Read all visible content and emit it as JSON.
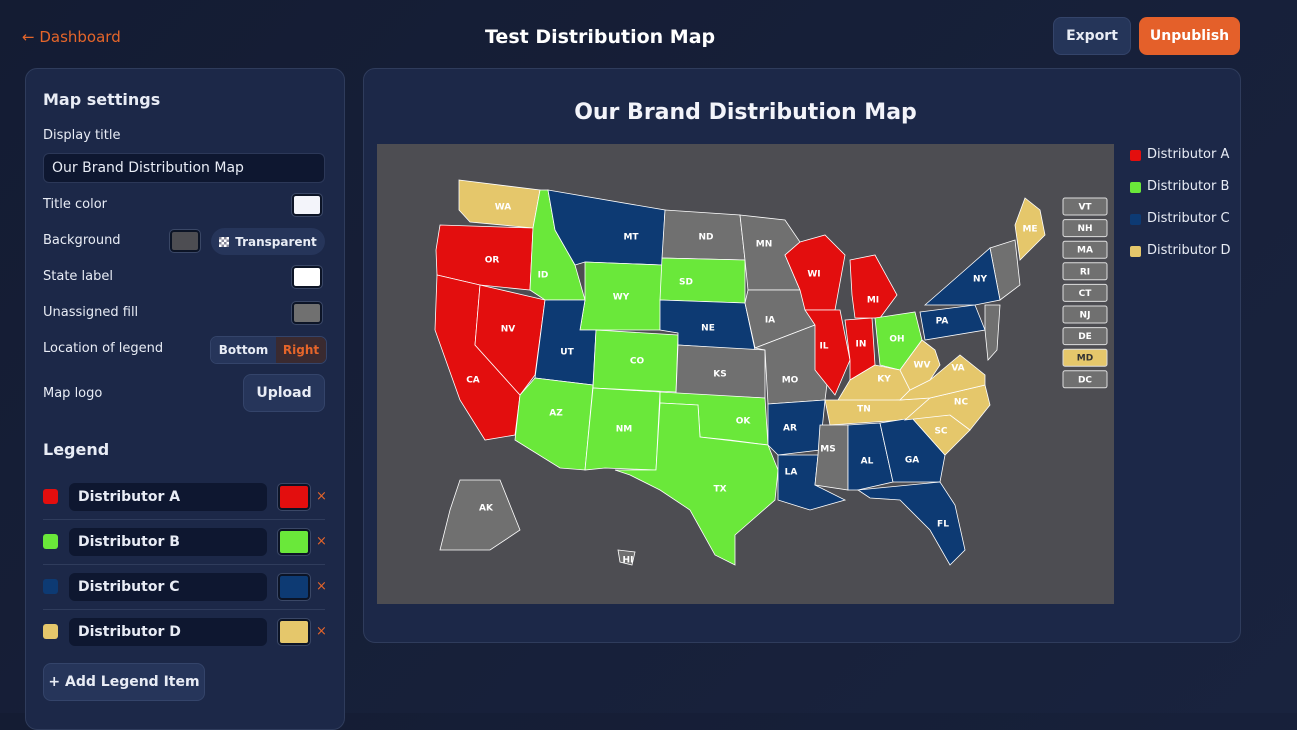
{
  "header": {
    "back": "← Dashboard",
    "title": "Test Distribution Map",
    "export": "Export",
    "unpublish": "Unpublish"
  },
  "settings": {
    "heading": "Map settings",
    "display_title_label": "Display title",
    "display_title": "Our Brand Distribution Map",
    "title_color_label": "Title color",
    "title_color": "#f3f4fa",
    "background_label": "Background",
    "background": "#4d4d52",
    "transparent": "Transparent",
    "state_label_label": "State label",
    "state_label": "#ffffff",
    "unassigned_label": "Unassigned fill",
    "unassigned": "#707070",
    "legend_location_label": "Location of legend",
    "legend_location_options": [
      "Bottom",
      "Right"
    ],
    "map_logo_label": "Map logo",
    "upload": "Upload"
  },
  "legend": {
    "heading": "Legend",
    "items": [
      {
        "name": "Distributor A",
        "color": "#e30e0e"
      },
      {
        "name": "Distributor B",
        "color": "#6ae83a"
      },
      {
        "name": "Distributor C",
        "color": "#0d3a73"
      },
      {
        "name": "Distributor D",
        "color": "#e5c76b"
      }
    ],
    "add": "+ Add Legend Item"
  },
  "map": {
    "states": [
      {
        "label": "WA",
        "color": "#e5c76b"
      },
      {
        "label": "OR",
        "color": "#e30e0e"
      },
      {
        "label": "CA",
        "color": "#e30e0e"
      },
      {
        "label": "NV",
        "color": "#e30e0e"
      },
      {
        "label": "ID",
        "color": "#6ae83a"
      },
      {
        "label": "MT",
        "color": "#0d3a73"
      },
      {
        "label": "WY",
        "color": "#6ae83a"
      },
      {
        "label": "UT",
        "color": "#0d3a73"
      },
      {
        "label": "CO",
        "color": "#6ae83a"
      },
      {
        "label": "AZ",
        "color": "#6ae83a"
      },
      {
        "label": "NM",
        "color": "#6ae83a"
      },
      {
        "label": "ND",
        "color": "#707070"
      },
      {
        "label": "SD",
        "color": "#6ae83a"
      },
      {
        "label": "NE",
        "color": "#0d3a73"
      },
      {
        "label": "KS",
        "color": "#707070"
      },
      {
        "label": "OK",
        "color": "#6ae83a"
      },
      {
        "label": "TX",
        "color": "#6ae83a"
      },
      {
        "label": "MN",
        "color": "#707070"
      },
      {
        "label": "IA",
        "color": "#707070"
      },
      {
        "label": "MO",
        "color": "#707070"
      },
      {
        "label": "AR",
        "color": "#0d3a73"
      },
      {
        "label": "LA",
        "color": "#0d3a73"
      },
      {
        "label": "MS",
        "color": "#707070"
      },
      {
        "label": "WI",
        "color": "#e30e0e"
      },
      {
        "label": "IL",
        "color": "#e30e0e"
      },
      {
        "label": "IN",
        "color": "#e30e0e"
      },
      {
        "label": "MI",
        "color": "#e30e0e"
      },
      {
        "label": "OH",
        "color": "#6ae83a"
      },
      {
        "label": "KY",
        "color": "#e5c76b"
      },
      {
        "label": "TN",
        "color": "#e5c76b"
      },
      {
        "label": "AL",
        "color": "#0d3a73"
      },
      {
        "label": "GA",
        "color": "#0d3a73"
      },
      {
        "label": "FL",
        "color": "#0d3a73"
      },
      {
        "label": "SC",
        "color": "#e5c76b"
      },
      {
        "label": "NC",
        "color": "#e5c76b"
      },
      {
        "label": "VA",
        "color": "#e5c76b"
      },
      {
        "label": "WV",
        "color": "#e5c76b"
      },
      {
        "label": "PA",
        "color": "#0d3a73"
      },
      {
        "label": "NY",
        "color": "#0d3a73"
      },
      {
        "label": "ME",
        "color": "#e5c76b"
      },
      {
        "label": "AK",
        "color": "#707070"
      },
      {
        "label": "HI",
        "color": "#707070"
      }
    ],
    "small_states": [
      {
        "label": "VT"
      },
      {
        "label": "NH"
      },
      {
        "label": "MA"
      },
      {
        "label": "RI"
      },
      {
        "label": "CT"
      },
      {
        "label": "NJ"
      },
      {
        "label": "DE"
      },
      {
        "label": "MD",
        "color": "#e5c76b"
      },
      {
        "label": "DC"
      }
    ]
  }
}
